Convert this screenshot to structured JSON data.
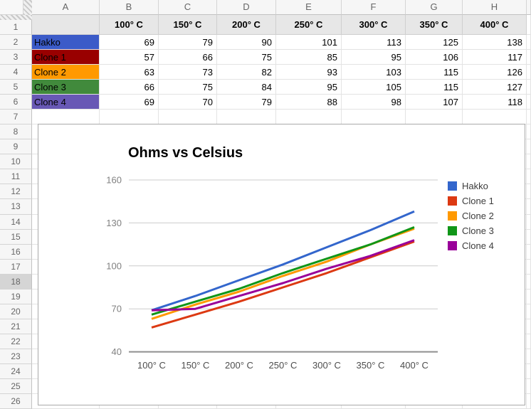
{
  "sheet": {
    "column_letters": [
      "A",
      "B",
      "C",
      "D",
      "E",
      "F",
      "G",
      "H"
    ],
    "row_numbers": [
      1,
      2,
      3,
      4,
      5,
      6,
      7,
      8,
      9,
      10,
      11,
      12,
      13,
      14,
      15,
      16,
      17,
      18,
      19,
      20,
      21,
      22,
      23,
      24,
      25,
      26
    ],
    "selected_row": 18,
    "header_row": [
      "",
      "100° C",
      "150° C",
      "200° C",
      "250° C",
      "300° C",
      "350° C",
      "400° C"
    ],
    "rows": [
      {
        "label": "Hakko",
        "fill": "#3b5bc8",
        "values": [
          69,
          79,
          90,
          101,
          113,
          125,
          138
        ]
      },
      {
        "label": "Clone 1",
        "fill": "#990000",
        "values": [
          57,
          66,
          75,
          85,
          95,
          106,
          117
        ]
      },
      {
        "label": "Clone 2",
        "fill": "#ff9900",
        "values": [
          63,
          73,
          82,
          93,
          103,
          115,
          126
        ]
      },
      {
        "label": "Clone 3",
        "fill": "#418a3c",
        "values": [
          66,
          75,
          84,
          95,
          105,
          115,
          127
        ]
      },
      {
        "label": "Clone 4",
        "fill": "#6858b5",
        "values": [
          69,
          70,
          79,
          88,
          98,
          107,
          118
        ]
      }
    ]
  },
  "chart_data": {
    "type": "line",
    "title": "Ohms vs Celsius",
    "categories": [
      "100° C",
      "150° C",
      "200° C",
      "250° C",
      "300° C",
      "350° C",
      "400° C"
    ],
    "series": [
      {
        "name": "Hakko",
        "color": "#3366cc",
        "values": [
          69,
          79,
          90,
          101,
          113,
          125,
          138
        ]
      },
      {
        "name": "Clone 1",
        "color": "#dc3912",
        "values": [
          57,
          66,
          75,
          85,
          95,
          106,
          117
        ]
      },
      {
        "name": "Clone 2",
        "color": "#ff9900",
        "values": [
          63,
          73,
          82,
          93,
          103,
          115,
          126
        ]
      },
      {
        "name": "Clone 3",
        "color": "#109618",
        "values": [
          66,
          75,
          84,
          95,
          105,
          115,
          127
        ]
      },
      {
        "name": "Clone 4",
        "color": "#990099",
        "values": [
          69,
          70,
          79,
          88,
          98,
          107,
          118
        ]
      }
    ],
    "y_ticks": [
      40,
      70,
      100,
      130,
      160
    ],
    "ylim": [
      40,
      160
    ],
    "xlabel": "",
    "ylabel": "",
    "grid": true,
    "legend_position": "right",
    "colors": {
      "gridline": "#cccccc",
      "axis_line": "#8f8f8f",
      "y_tick_label": "#808080",
      "x_tick_label": "#4d4d4d"
    }
  }
}
